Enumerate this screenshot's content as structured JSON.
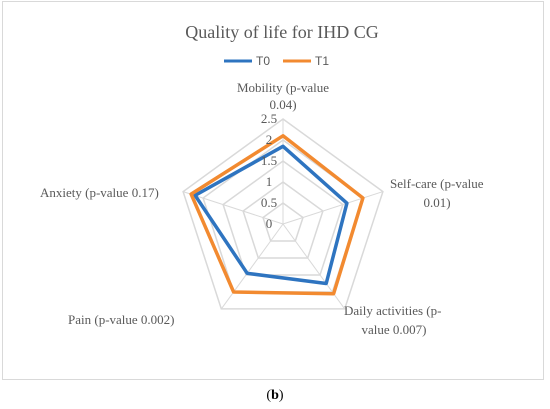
{
  "chart_data": {
    "type": "radar",
    "title": "Quality of life for IHD CG",
    "axes": [
      [
        "Mobility (p-value",
        "0.04)"
      ],
      [
        "Self-care (p-value",
        "0.01)"
      ],
      [
        "Daily activities (p-",
        "value 0.007)"
      ],
      [
        "Pain (p-value 0.002)"
      ],
      [
        "Anxiety (p-value 0.17)"
      ]
    ],
    "ticks": [
      "0",
      "0.5",
      "1",
      "1.5",
      "2",
      "2.5"
    ],
    "rmax": 2.5,
    "series": [
      {
        "name": "T0",
        "color": "#2e74c0",
        "values": [
          1.85,
          1.6,
          1.75,
          1.45,
          2.2
        ]
      },
      {
        "name": "T1",
        "color": "#f28a30",
        "values": [
          2.1,
          2.0,
          2.05,
          2.0,
          2.3
        ]
      }
    ],
    "grid_color": "#d9d9d9",
    "legend_position": "top"
  },
  "caption": {
    "open": "(",
    "letter": "b",
    "close": ")"
  }
}
